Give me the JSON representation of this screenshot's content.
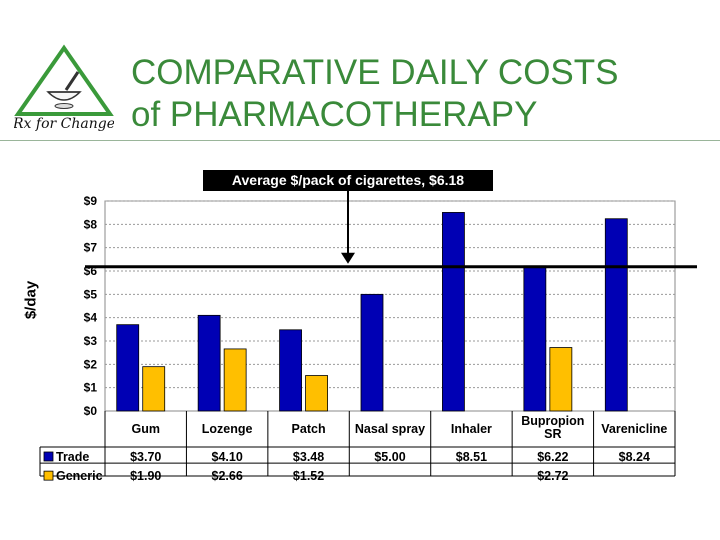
{
  "slide": {
    "title_line1": "COMPARATIVE DAILY COSTS",
    "title_line2": "of PHARMACOTHERAPY",
    "logo_text": "Rx for Change"
  },
  "chart_data": {
    "type": "bar",
    "categories": [
      "Gum",
      "Lozenge",
      "Patch",
      "Nasal spray",
      "Inhaler",
      "Bupropion SR",
      "Varenicline"
    ],
    "category_labels": [
      [
        "Gum"
      ],
      [
        "Lozenge"
      ],
      [
        "Patch"
      ],
      [
        "Nasal spray"
      ],
      [
        "Inhaler"
      ],
      [
        "Bupropion",
        "SR"
      ],
      [
        "Varenicline"
      ]
    ],
    "series": [
      {
        "name": "Trade",
        "color": "#0000b4",
        "values": [
          3.7,
          4.1,
          3.48,
          5.0,
          8.51,
          6.22,
          8.24
        ],
        "labels": [
          "$3.70",
          "$4.10",
          "$3.48",
          "$5.00",
          "$8.51",
          "$6.22",
          "$8.24"
        ]
      },
      {
        "name": "Generic",
        "color": "#ffbf00",
        "values": [
          1.9,
          2.66,
          1.52,
          null,
          null,
          2.72,
          null
        ],
        "labels": [
          "$1.90",
          "$2.66",
          "$1.52",
          "",
          "",
          "$2.72",
          ""
        ]
      }
    ],
    "ylabel": "$/day",
    "ylim": [
      0,
      9
    ],
    "yticks": [
      0,
      1,
      2,
      3,
      4,
      5,
      6,
      7,
      8,
      9
    ],
    "ytick_labels": [
      "$0",
      "$1",
      "$2",
      "$3",
      "$4",
      "$5",
      "$6",
      "$7",
      "$8",
      "$9"
    ],
    "grid": true,
    "legend": "data-table",
    "reference_line": {
      "value": 6.18,
      "label": "Average $/pack of cigarettes, $6.18"
    }
  }
}
